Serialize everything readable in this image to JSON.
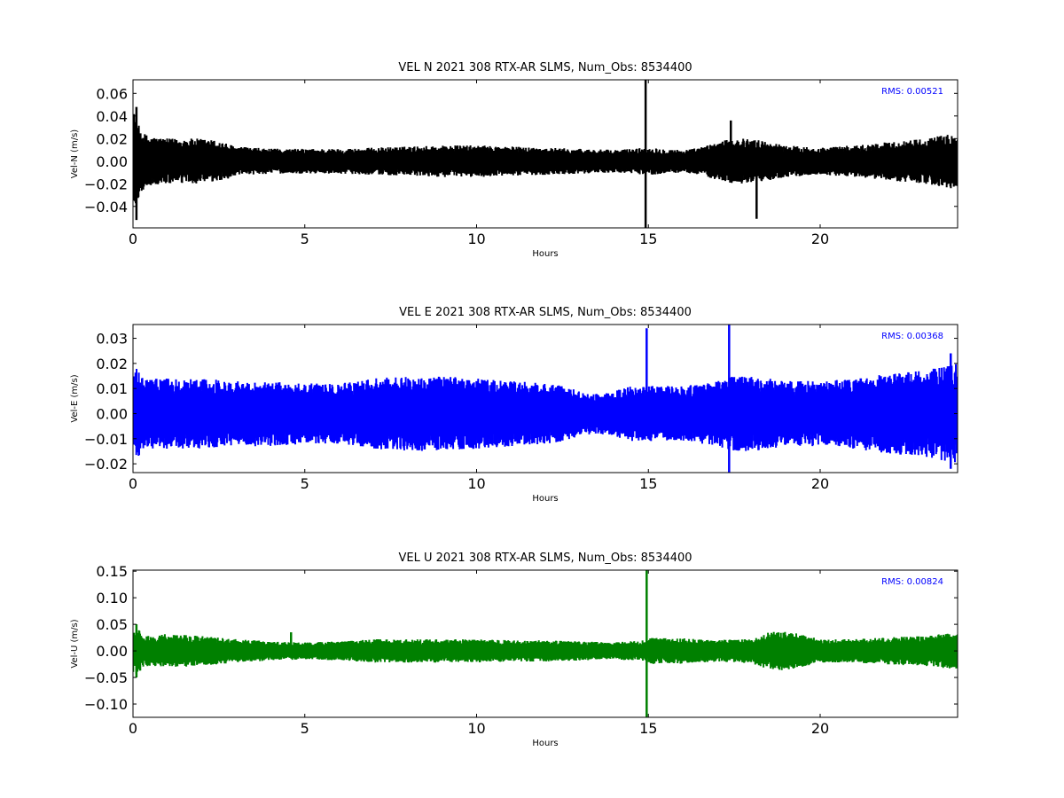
{
  "chart_data": [
    {
      "type": "line",
      "title": "VEL N 2021 308 RTX-AR  SLMS, Num_Obs: 8534400",
      "xlabel": "Hours",
      "ylabel": "Vel-N (m/s)",
      "xlim": [
        0,
        24
      ],
      "ylim": [
        -0.059,
        0.072
      ],
      "xticks": [
        0,
        5,
        10,
        15,
        20
      ],
      "xtick_labels": [
        "0",
        "5",
        "10",
        "15",
        "20"
      ],
      "yticks": [
        -0.04,
        -0.02,
        0.0,
        0.02,
        0.04,
        0.06
      ],
      "ytick_labels": [
        "−0.04",
        "−0.02",
        "0.00",
        "0.02",
        "0.04",
        "0.06"
      ],
      "annotation": "RMS:  0.00521",
      "color": "#000000",
      "series": [
        {
          "envelope_hours": [
            0,
            0.05,
            0.1,
            0.2,
            0.3,
            0.5,
            1,
            1.5,
            2,
            2.5,
            3,
            4,
            5,
            6,
            7,
            8,
            9,
            10,
            11,
            12,
            13,
            14,
            14.9,
            15.1,
            15.5,
            16,
            16.5,
            17,
            17.5,
            18,
            18.5,
            19,
            20,
            21,
            22,
            23,
            24
          ],
          "envelope_amp": [
            0.04,
            0.045,
            0.035,
            0.03,
            0.025,
            0.022,
            0.02,
            0.02,
            0.02,
            0.018,
            0.013,
            0.011,
            0.011,
            0.011,
            0.012,
            0.013,
            0.014,
            0.014,
            0.013,
            0.012,
            0.011,
            0.01,
            0.012,
            0.012,
            0.011,
            0.01,
            0.012,
            0.017,
            0.02,
            0.02,
            0.017,
            0.014,
            0.012,
            0.014,
            0.017,
            0.02,
            0.025
          ],
          "spikes": [
            {
              "hour": 0.1,
              "min": -0.052,
              "max": 0.048
            },
            {
              "hour": 14.92,
              "min": -0.059,
              "max": 0.072
            },
            {
              "hour": 17.4,
              "min": -0.01,
              "max": 0.036
            },
            {
              "hour": 18.15,
              "min": -0.051,
              "max": 0.01
            }
          ]
        }
      ]
    },
    {
      "type": "line",
      "title": "VEL E 2021 308 RTX-AR  SLMS, Num_Obs: 8534400",
      "xlabel": "Hours",
      "ylabel": "Vel-E (m/s)",
      "xlim": [
        0,
        24
      ],
      "ylim": [
        -0.0235,
        0.0355
      ],
      "xticks": [
        0,
        5,
        10,
        15,
        20
      ],
      "xtick_labels": [
        "0",
        "5",
        "10",
        "15",
        "20"
      ],
      "yticks": [
        -0.02,
        -0.01,
        0.0,
        0.01,
        0.02,
        0.03
      ],
      "ytick_labels": [
        "−0.02",
        "−0.01",
        "0.00",
        "0.01",
        "0.02",
        "0.03"
      ],
      "annotation": "RMS:  0.00368",
      "color": "#0000ff",
      "series": [
        {
          "envelope_hours": [
            0,
            0.1,
            0.3,
            0.5,
            1,
            2,
            3,
            4,
            5,
            6,
            7,
            8,
            9,
            10,
            11,
            12,
            12.5,
            13,
            13.5,
            14,
            14.5,
            15,
            16,
            17,
            17.5,
            18,
            19,
            20,
            21,
            22,
            23,
            24
          ],
          "envelope_amp": [
            0.016,
            0.018,
            0.014,
            0.014,
            0.014,
            0.014,
            0.013,
            0.013,
            0.012,
            0.012,
            0.014,
            0.015,
            0.015,
            0.014,
            0.013,
            0.012,
            0.011,
            0.009,
            0.008,
            0.009,
            0.011,
            0.011,
            0.011,
            0.013,
            0.015,
            0.015,
            0.013,
            0.013,
            0.014,
            0.016,
            0.017,
            0.02
          ],
          "spikes": [
            {
              "hour": 14.95,
              "min": -0.009,
              "max": 0.034
            },
            {
              "hour": 17.35,
              "min": -0.0235,
              "max": 0.0355
            },
            {
              "hour": 23.8,
              "min": -0.022,
              "max": 0.024
            }
          ]
        }
      ]
    },
    {
      "type": "line",
      "title": "VEL U 2021 308 RTX-AR  SLMS, Num_Obs: 8534400",
      "xlabel": "Hours",
      "ylabel": "Vel-U (m/s)",
      "xlim": [
        0,
        24
      ],
      "ylim": [
        -0.125,
        0.152
      ],
      "xticks": [
        0,
        5,
        10,
        15,
        20
      ],
      "xtick_labels": [
        "0",
        "5",
        "10",
        "15",
        "20"
      ],
      "yticks": [
        -0.1,
        -0.05,
        0.0,
        0.05,
        0.1,
        0.15
      ],
      "ytick_labels": [
        "−0.10",
        "−0.05",
        "0.00",
        "0.05",
        "0.10",
        "0.15"
      ],
      "annotation": "RMS:  0.00824",
      "color": "#008000",
      "series": [
        {
          "envelope_hours": [
            0,
            0.1,
            0.3,
            0.5,
            1,
            1.5,
            2,
            3,
            4,
            5,
            6,
            7,
            8,
            9,
            10,
            11,
            12,
            13,
            14,
            14.9,
            15.1,
            16,
            17,
            18,
            18.5,
            19,
            19.5,
            20,
            21,
            22,
            23,
            24
          ],
          "envelope_amp": [
            0.04,
            0.045,
            0.03,
            0.028,
            0.032,
            0.03,
            0.028,
            0.022,
            0.018,
            0.016,
            0.018,
            0.022,
            0.022,
            0.022,
            0.022,
            0.02,
            0.02,
            0.018,
            0.016,
            0.02,
            0.025,
            0.024,
            0.02,
            0.024,
            0.035,
            0.038,
            0.03,
            0.022,
            0.022,
            0.026,
            0.028,
            0.035
          ],
          "spikes": [
            {
              "hour": 0.1,
              "min": -0.05,
              "max": 0.05
            },
            {
              "hour": 14.95,
              "min": -0.125,
              "max": 0.152
            },
            {
              "hour": 4.6,
              "min": -0.01,
              "max": 0.035
            }
          ]
        }
      ]
    }
  ]
}
